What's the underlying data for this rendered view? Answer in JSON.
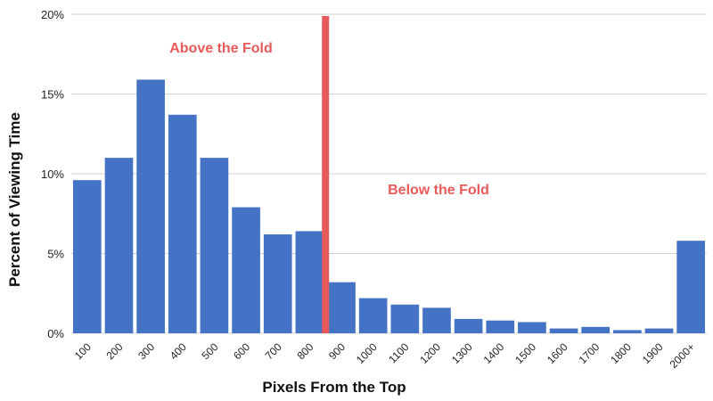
{
  "chart_data": {
    "type": "bar",
    "xlabel": "Pixels From the Top",
    "ylabel": "Percent of Viewing Time",
    "ylim": [
      0,
      20
    ],
    "yticks": [
      "0%",
      "5%",
      "10%",
      "15%",
      "20%"
    ],
    "grid": true,
    "categories": [
      "100",
      "200",
      "300",
      "400",
      "500",
      "600",
      "700",
      "800",
      "900",
      "1000",
      "1100",
      "1200",
      "1300",
      "1400",
      "1500",
      "1600",
      "1700",
      "1800",
      "1900",
      "2000+"
    ],
    "values": [
      9.6,
      11.0,
      15.9,
      13.7,
      11.0,
      7.9,
      6.2,
      6.4,
      3.2,
      2.2,
      1.8,
      1.6,
      0.9,
      0.8,
      0.7,
      0.3,
      0.4,
      0.2,
      0.3,
      5.8
    ],
    "annotations": {
      "above": "Above the Fold",
      "below": "Below the Fold",
      "fold_after_category": "800"
    },
    "colors": {
      "bar": "#4472c4",
      "fold": "#e85a5a",
      "grid": "#d0d0d0"
    }
  }
}
